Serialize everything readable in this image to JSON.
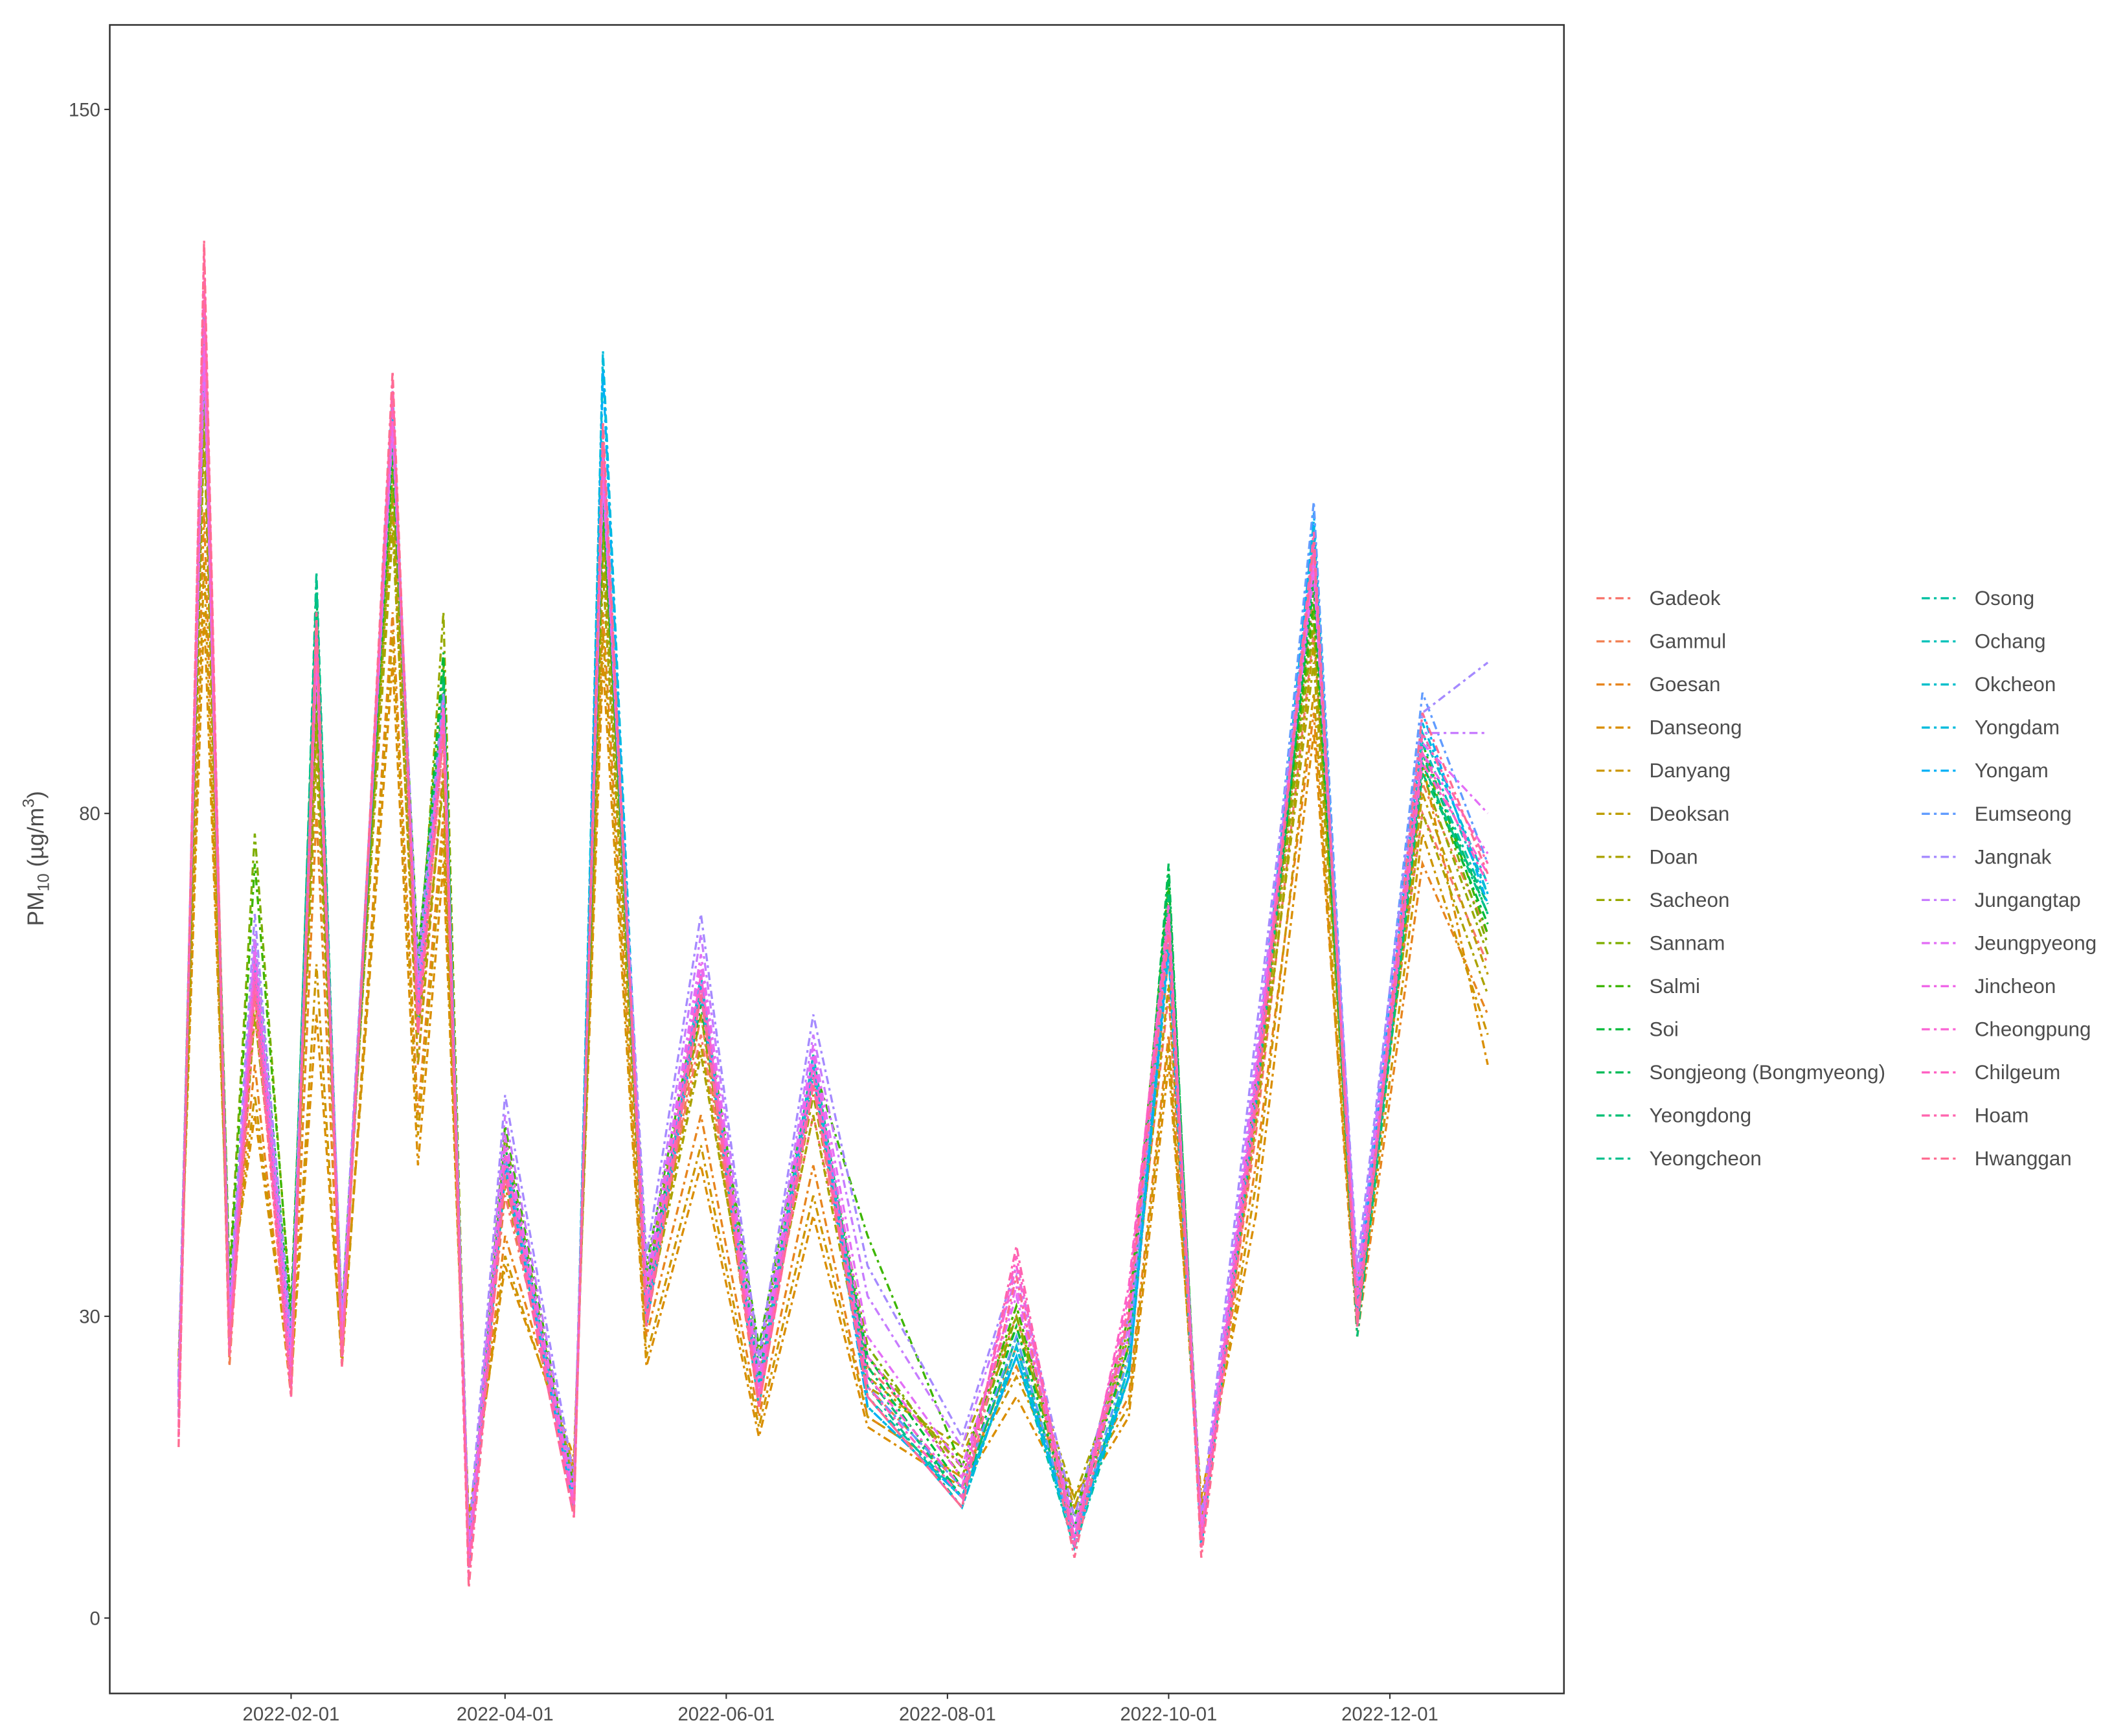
{
  "chart_data": {
    "type": "line",
    "y_label": [
      "PM",
      "10",
      " (µg/m",
      "3",
      ")"
    ],
    "x": [
      "2022-01-01",
      "2022-01-08",
      "2022-01-15",
      "2022-01-22",
      "2022-02-01",
      "2022-02-08",
      "2022-02-15",
      "2022-03-01",
      "2022-03-08",
      "2022-03-15",
      "2022-03-22",
      "2022-04-01",
      "2022-04-20",
      "2022-04-28",
      "2022-05-10",
      "2022-05-25",
      "2022-06-10",
      "2022-06-25",
      "2022-07-10",
      "2022-08-05",
      "2022-08-20",
      "2022-09-05",
      "2022-09-20",
      "2022-10-01",
      "2022-10-10",
      "2022-10-25",
      "2022-11-10",
      "2022-11-22",
      "2022-12-10",
      "2022-12-28"
    ],
    "xlim": [
      "2021-12-13",
      "2023-01-18"
    ],
    "xticks": [
      "2022-02-01",
      "2022-04-01",
      "2022-06-01",
      "2022-08-01",
      "2022-10-01",
      "2022-12-01"
    ],
    "ylim": [
      -7.5,
      158.4
    ],
    "yticks": [
      0,
      30,
      80,
      150
    ],
    "grid": false,
    "legend_columns": 2,
    "series": [
      {
        "name": "Gadeok",
        "color": "#F8766D",
        "values": [
          22,
          125,
          26,
          60,
          27,
          90,
          30,
          112,
          55,
          85,
          8,
          42,
          14,
          108,
          32,
          58,
          24,
          50,
          25,
          15,
          30,
          10,
          27,
          62,
          10,
          48,
          98,
          33,
          80,
          65
        ]
      },
      {
        "name": "Gammul",
        "color": "#F17E4F",
        "values": [
          18,
          128,
          25,
          63,
          24,
          92,
          27,
          115,
          58,
          88,
          6,
          44,
          13,
          112,
          29,
          60,
          21,
          53,
          23,
          13,
          27,
          9,
          24,
          66,
          9,
          50,
          102,
          29,
          83,
          68
        ]
      },
      {
        "name": "Goesan",
        "color": "#E7851E",
        "values": [
          24,
          110,
          30,
          55,
          22,
          80,
          25,
          100,
          50,
          80,
          9,
          38,
          15,
          100,
          28,
          50,
          20,
          45,
          20,
          14,
          25,
          12,
          22,
          58,
          11,
          45,
          90,
          28,
          75,
          60
        ]
      },
      {
        "name": "Danseong",
        "color": "#DA8E00",
        "values": [
          26,
          100,
          32,
          50,
          24,
          60,
          26,
          95,
          45,
          75,
          10,
          35,
          16,
          95,
          25,
          45,
          18,
          40,
          19,
          13,
          22,
          11,
          20,
          55,
          12,
          40,
          88,
          30,
          85,
          55
        ]
      },
      {
        "name": "Danyang",
        "color": "#CC9600",
        "values": [
          25,
          105,
          31,
          52,
          23,
          65,
          25,
          98,
          48,
          78,
          9,
          36,
          15,
          98,
          26,
          47,
          19,
          42,
          20,
          14,
          24,
          12,
          21,
          57,
          10,
          43,
          92,
          29,
          78,
          58
        ]
      },
      {
        "name": "Deoksan",
        "color": "#BD9D00",
        "values": [
          21,
          120,
          29,
          62,
          26,
          88,
          29,
          110,
          55,
          84,
          7,
          43,
          13,
          106,
          31,
          57,
          23,
          52,
          24,
          16,
          29,
          11,
          26,
          63,
          9,
          49,
          97,
          31,
          82,
          64
        ]
      },
      {
        "name": "Doan",
        "color": "#ABA300",
        "values": [
          22,
          118,
          28,
          60,
          27,
          85,
          30,
          108,
          58,
          83,
          8,
          44,
          14,
          104,
          30,
          56,
          24,
          50,
          23,
          17,
          30,
          12,
          27,
          70,
          10,
          50,
          95,
          33,
          80,
          62
        ]
      },
      {
        "name": "Sacheon",
        "color": "#97A900",
        "values": [
          23,
          122,
          30,
          64,
          28,
          90,
          28,
          112,
          62,
          100,
          7,
          46,
          13,
          108,
          33,
          60,
          25,
          52,
          26,
          15,
          31,
          10,
          28,
          72,
          9,
          51,
          99,
          30,
          84,
          66
        ]
      },
      {
        "name": "Sannam",
        "color": "#7FAE00",
        "values": [
          20,
          124,
          34,
          78,
          30,
          92,
          29,
          114,
          65,
          95,
          6,
          48,
          12,
          110,
          34,
          62,
          26,
          54,
          27,
          14,
          30,
          9,
          29,
          71,
          8,
          53,
          100,
          32,
          86,
          67
        ]
      },
      {
        "name": "Salmi",
        "color": "#3DB600",
        "values": [
          21,
          126,
          33,
          75,
          31,
          94,
          30,
          116,
          66,
          92,
          6,
          49,
          13,
          111,
          35,
          63,
          27,
          55,
          38,
          15,
          31,
          10,
          30,
          73,
          9,
          54,
          101,
          31,
          87,
          68
        ]
      },
      {
        "name": "Soi",
        "color": "#00BA38",
        "values": [
          23,
          127,
          31,
          68,
          29,
          100,
          28,
          117,
          64,
          96,
          5,
          47,
          12,
          112,
          33,
          61,
          25,
          54,
          26,
          13,
          29,
          9,
          27,
          74,
          8,
          52,
          103,
          30,
          85,
          69
        ]
      },
      {
        "name": "Songjeong (Bongmyeong)",
        "color": "#00BC59",
        "values": [
          22,
          129,
          30,
          66,
          28,
          102,
          27,
          118,
          62,
          94,
          6,
          46,
          12,
          113,
          31,
          62,
          24,
          55,
          25,
          12,
          28,
          8,
          26,
          75,
          7,
          51,
          104,
          29,
          86,
          70
        ]
      },
      {
        "name": "Yeongdong",
        "color": "#00BF74",
        "values": [
          24,
          128,
          29,
          67,
          27,
          103,
          26,
          119,
          61,
          93,
          5,
          45,
          11,
          114,
          30,
          63,
          23,
          56,
          24,
          12,
          28,
          8,
          25,
          72,
          7,
          52,
          105,
          28,
          84,
          71
        ]
      },
      {
        "name": "Yeongcheon",
        "color": "#00C08D",
        "values": [
          23,
          129,
          28,
          66,
          26,
          104,
          27,
          120,
          60,
          92,
          5,
          46,
          12,
          115,
          30,
          62,
          22,
          55,
          23,
          11,
          27,
          8,
          24,
          70,
          8,
          51,
          106,
          29,
          85,
          70
        ]
      },
      {
        "name": "Osong",
        "color": "#00C1A3",
        "values": [
          22,
          130,
          27,
          67,
          25,
          100,
          27,
          121,
          60,
          91,
          6,
          45,
          11,
          116,
          29,
          63,
          22,
          54,
          22,
          12,
          26,
          7,
          24,
          69,
          8,
          52,
          107,
          30,
          86,
          71
        ]
      },
      {
        "name": "Ochang",
        "color": "#00C1B8",
        "values": [
          21,
          131,
          28,
          66,
          26,
          99,
          28,
          120,
          59,
          90,
          6,
          44,
          12,
          117,
          30,
          62,
          21,
          55,
          22,
          11,
          27,
          8,
          25,
          68,
          7,
          53,
          108,
          30,
          87,
          72
        ]
      },
      {
        "name": "Okcheon",
        "color": "#00BFCB",
        "values": [
          20,
          130,
          28,
          65,
          25,
          98,
          27,
          122,
          60,
          91,
          5,
          45,
          11,
          125,
          29,
          64,
          22,
          56,
          21,
          12,
          26,
          8,
          24,
          67,
          8,
          52,
          108,
          31,
          88,
          73
        ]
      },
      {
        "name": "Yongdam",
        "color": "#00BBDC",
        "values": [
          21,
          129,
          29,
          64,
          26,
          97,
          28,
          121,
          61,
          90,
          6,
          46,
          12,
          126,
          30,
          63,
          23,
          55,
          22,
          11,
          27,
          7,
          25,
          66,
          7,
          53,
          109,
          30,
          89,
          72
        ]
      },
      {
        "name": "Yongam",
        "color": "#00B0F6",
        "values": [
          22,
          128,
          29,
          65,
          25,
          96,
          27,
          120,
          60,
          89,
          5,
          45,
          11,
          124,
          29,
          62,
          22,
          54,
          21,
          12,
          26,
          8,
          24,
          67,
          8,
          52,
          110,
          32,
          90,
          71
        ]
      },
      {
        "name": "Eumseong",
        "color": "#619CFF",
        "values": [
          23,
          130,
          30,
          66,
          26,
          98,
          28,
          121,
          62,
          91,
          6,
          46,
          12,
          115,
          31,
          64,
          23,
          56,
          23,
          13,
          28,
          8,
          26,
          70,
          9,
          54,
          111,
          33,
          92,
          75
        ]
      },
      {
        "name": "Jangnak",
        "color": "#A58AFF",
        "values": [
          24,
          125,
          31,
          70,
          28,
          97,
          30,
          119,
          65,
          92,
          8,
          52,
          14,
          114,
          36,
          70,
          26,
          60,
          35,
          18,
          35,
          10,
          30,
          69,
          10,
          58,
          106,
          35,
          90,
          95
        ]
      },
      {
        "name": "Jungangtap",
        "color": "#C77CFF",
        "values": [
          23,
          126,
          30,
          68,
          27,
          96,
          29,
          118,
          63,
          90,
          7,
          50,
          13,
          113,
          34,
          68,
          25,
          58,
          32,
          17,
          34,
          9,
          29,
          68,
          9,
          56,
          105,
          34,
          88,
          88
        ]
      },
      {
        "name": "Jeungpyeong",
        "color": "#E36EF6",
        "values": [
          22,
          127,
          29,
          67,
          26,
          95,
          28,
          119,
          62,
          89,
          6,
          48,
          12,
          114,
          33,
          66,
          24,
          57,
          28,
          15,
          32,
          9,
          28,
          69,
          9,
          55,
          104,
          33,
          87,
          80
        ]
      },
      {
        "name": "Jincheon",
        "color": "#F066E8",
        "values": [
          21,
          128,
          28,
          66,
          25,
          96,
          27,
          120,
          61,
          90,
          6,
          47,
          12,
          115,
          32,
          65,
          23,
          56,
          26,
          14,
          33,
          8,
          30,
          70,
          8,
          54,
          105,
          32,
          86,
          76
        ]
      },
      {
        "name": "Cheongpung",
        "color": "#FA62D4",
        "values": [
          20,
          132,
          27,
          65,
          24,
          97,
          26,
          121,
          60,
          91,
          5,
          46,
          11,
          116,
          31,
          64,
          22,
          55,
          24,
          13,
          35,
          8,
          32,
          71,
          8,
          53,
          106,
          31,
          85,
          74
        ]
      },
      {
        "name": "Chilgeum",
        "color": "#FF61C3",
        "values": [
          19,
          133,
          27,
          64,
          23,
          98,
          26,
          122,
          59,
          90,
          5,
          45,
          11,
          117,
          30,
          63,
          22,
          54,
          23,
          12,
          36,
          7,
          33,
          70,
          7,
          52,
          107,
          30,
          86,
          73
        ]
      },
      {
        "name": "Hoam",
        "color": "#FF65AE",
        "values": [
          18,
          136,
          26,
          63,
          22,
          99,
          25,
          123,
          58,
          89,
          4,
          44,
          10,
          118,
          29,
          62,
          21,
          53,
          22,
          11,
          37,
          7,
          31,
          69,
          7,
          51,
          108,
          29,
          88,
          75
        ]
      },
      {
        "name": "Hwanggan",
        "color": "#FF6C91",
        "values": [
          17,
          137,
          26,
          62,
          22,
          100,
          25,
          124,
          58,
          88,
          3,
          44,
          10,
          119,
          29,
          62,
          21,
          53,
          22,
          11,
          34,
          6,
          30,
          68,
          6,
          50,
          107,
          29,
          90,
          74
        ]
      }
    ]
  }
}
